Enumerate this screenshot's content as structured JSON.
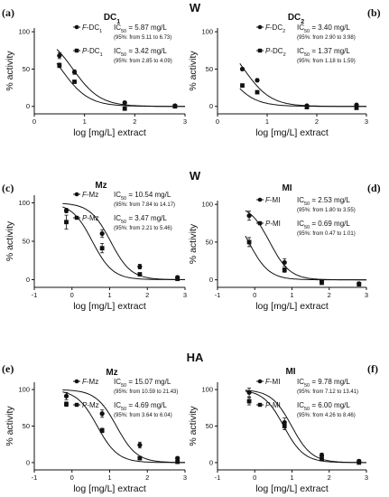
{
  "figure": {
    "row_labels": [
      "W",
      "W",
      "HA"
    ],
    "panel_letters": [
      "(a)",
      "(b)",
      "(c)",
      "(d)",
      "(e)",
      "(f)"
    ]
  },
  "chart_data": [
    {
      "type": "scatter",
      "letter": "(a)",
      "title": "DC",
      "title_sub": "1",
      "xlabel": "log [mg/L] extract",
      "ylabel": "% activity",
      "xlim": [
        0,
        3
      ],
      "ylim": [
        -10,
        105
      ],
      "xticks": [
        0,
        1,
        2,
        3
      ],
      "yticks": [
        0,
        50,
        100
      ],
      "grid": false,
      "legend_position": "top-right",
      "series": [
        {
          "name": "F-DC1",
          "marker": "circle",
          "ic50": "IC50 = 5.87 mg/L",
          "ci": "(95%: from 5.11 to 6.73)",
          "points": [
            [
              0.5,
              68,
              4
            ],
            [
              0.8,
              46,
              3
            ],
            [
              1.8,
              5,
              2
            ],
            [
              2.8,
              1,
              1
            ]
          ],
          "logIC50": 0.769
        },
        {
          "name": "P-DC1",
          "marker": "square",
          "ic50": "IC50 = 3.42 mg/L",
          "ci": "(95%: from 2.85 to 4.09)",
          "points": [
            [
              0.5,
              55,
              3
            ],
            [
              0.8,
              33,
              2
            ],
            [
              1.8,
              -3,
              2
            ],
            [
              2.8,
              0,
              1
            ]
          ],
          "logIC50": 0.534
        }
      ]
    },
    {
      "type": "scatter",
      "letter": "(b)",
      "title": "DC",
      "title_sub": "2",
      "xlabel": "log [mg/L] extract",
      "ylabel": "% activity",
      "xlim": [
        0,
        3
      ],
      "ylim": [
        -10,
        105
      ],
      "xticks": [
        0,
        1,
        2,
        3
      ],
      "yticks": [
        0,
        50,
        100
      ],
      "grid": false,
      "legend_position": "top-right",
      "series": [
        {
          "name": "F-DC2",
          "marker": "circle",
          "ic50": "IC50 = 3.40 mg/L",
          "ci": "(95%: from 2.90 to 3.98)",
          "points": [
            [
              0.5,
              50,
              2
            ],
            [
              0.8,
              35,
              2
            ],
            [
              1.8,
              1,
              1
            ],
            [
              2.8,
              2,
              1
            ]
          ],
          "logIC50": 0.531
        },
        {
          "name": "P-DC2",
          "marker": "square",
          "ic50": "IC50 = 1.37 mg/L",
          "ci": "(95%: from 1.18 to 1.59)",
          "points": [
            [
              0.5,
              28,
              2
            ],
            [
              0.8,
              19,
              2
            ],
            [
              1.8,
              -1,
              1
            ],
            [
              2.8,
              -2,
              1
            ]
          ],
          "logIC50": 0.137
        }
      ]
    },
    {
      "type": "scatter",
      "letter": "(c)",
      "title": "Mz",
      "title_sub": "",
      "xlabel": "log [mg/L] extract",
      "ylabel": "% activity",
      "xlim": [
        -1,
        3
      ],
      "ylim": [
        -10,
        110
      ],
      "xticks": [
        -1,
        0,
        1,
        2,
        3
      ],
      "yticks": [
        0,
        50,
        100
      ],
      "grid": false,
      "legend_position": "top-right",
      "series": [
        {
          "name": "F-Mz",
          "marker": "circle",
          "ic50": "IC50 = 10.54 mg/L",
          "ci": "(95%: from 7.84 to 14.17)",
          "points": [
            [
              -0.15,
              90,
              3
            ],
            [
              0.8,
              60,
              5
            ],
            [
              1.8,
              17,
              3
            ],
            [
              2.8,
              3,
              2
            ]
          ],
          "logIC50": 1.023
        },
        {
          "name": "P-Mz",
          "marker": "square",
          "ic50": "IC50 = 3.47 mg/L",
          "ci": "(95%: from 2.21 to 5.46)",
          "points": [
            [
              -0.15,
              75,
              9
            ],
            [
              0.8,
              41,
              6
            ],
            [
              1.8,
              7,
              2
            ],
            [
              2.8,
              1,
              1
            ]
          ],
          "logIC50": 0.54
        }
      ]
    },
    {
      "type": "scatter",
      "letter": "(d)",
      "title": "MI",
      "title_sub": "",
      "xlabel": "log [mg/L] extract",
      "ylabel": "% activity",
      "xlim": [
        -1,
        3
      ],
      "ylim": [
        -10,
        105
      ],
      "xticks": [
        -1,
        0,
        1,
        2,
        3
      ],
      "yticks": [
        0,
        50,
        100
      ],
      "grid": false,
      "legend_position": "top-right",
      "series": [
        {
          "name": "F-MI",
          "marker": "circle",
          "ic50": "IC50 = 2.53 mg/L",
          "ci": "(95%: from 1.80 to 3.55)",
          "points": [
            [
              -0.15,
              85,
              6
            ],
            [
              0.8,
              23,
              5
            ],
            [
              1.8,
              -2,
              2
            ],
            [
              2.8,
              -5,
              1
            ]
          ],
          "logIC50": 0.403
        },
        {
          "name": "P-MI",
          "marker": "square",
          "ic50": "IC50 = 0.69 mg/L",
          "ci": "(95%: from 0.47 to 1.01)",
          "points": [
            [
              -0.15,
              50,
              6
            ],
            [
              0.8,
              13,
              3
            ],
            [
              1.8,
              -4,
              2
            ],
            [
              2.8,
              -6,
              1
            ]
          ],
          "logIC50": -0.161
        }
      ]
    },
    {
      "type": "scatter",
      "letter": "(e)",
      "title": "Mz",
      "title_sub": "",
      "xlabel": "log [mg/L] extract",
      "ylabel": "% activity",
      "xlim": [
        -1,
        3
      ],
      "ylim": [
        -10,
        110
      ],
      "xticks": [
        -1,
        0,
        1,
        2,
        3
      ],
      "yticks": [
        0,
        50,
        100
      ],
      "grid": false,
      "legend_position": "top-right",
      "series": [
        {
          "name": "F-Mz",
          "marker": "circle",
          "ic50": "IC50 = 15.07 mg/L",
          "ci": "(95%: from 10.59 to 21.43)",
          "points": [
            [
              -0.15,
              91,
              5
            ],
            [
              0.8,
              67,
              5
            ],
            [
              1.8,
              24,
              4
            ],
            [
              2.8,
              6,
              2
            ]
          ],
          "logIC50": 1.178
        },
        {
          "name": "P-Mz",
          "marker": "square",
          "ic50": "IC50 = 4.69 mg/L",
          "ci": "(95%: from 3.64 to 6.04)",
          "points": [
            [
              -0.15,
              80,
              3
            ],
            [
              0.8,
              44,
              3
            ],
            [
              1.8,
              6,
              2
            ],
            [
              2.8,
              1,
              1
            ]
          ],
          "logIC50": 0.671
        }
      ]
    },
    {
      "type": "scatter",
      "letter": "(f)",
      "title": "MI",
      "title_sub": "",
      "xlabel": "log [mg/L] extract",
      "ylabel": "% activity",
      "xlim": [
        -1,
        3
      ],
      "ylim": [
        -10,
        110
      ],
      "xticks": [
        -1,
        0,
        1,
        2,
        3
      ],
      "yticks": [
        0,
        50,
        100
      ],
      "grid": false,
      "legend_position": "top-right",
      "series": [
        {
          "name": "F-MI",
          "marker": "circle",
          "ic50": "IC50 = 9.78 mg/L",
          "ci": "(95%: from 7.12 to 13.41)",
          "points": [
            [
              -0.15,
              96,
              6
            ],
            [
              0.8,
              55,
              6
            ],
            [
              1.8,
              10,
              3
            ],
            [
              2.8,
              2,
              2
            ]
          ],
          "logIC50": 0.99
        },
        {
          "name": "P-MI",
          "marker": "square",
          "ic50": "IC50 = 6.00 mg/L",
          "ci": "(95%: from 4.26 to 8.46)",
          "points": [
            [
              -0.15,
              84,
              5
            ],
            [
              0.8,
              50,
              5
            ],
            [
              1.8,
              5,
              2
            ],
            [
              2.8,
              0,
              1
            ]
          ],
          "logIC50": 0.778
        }
      ]
    }
  ]
}
